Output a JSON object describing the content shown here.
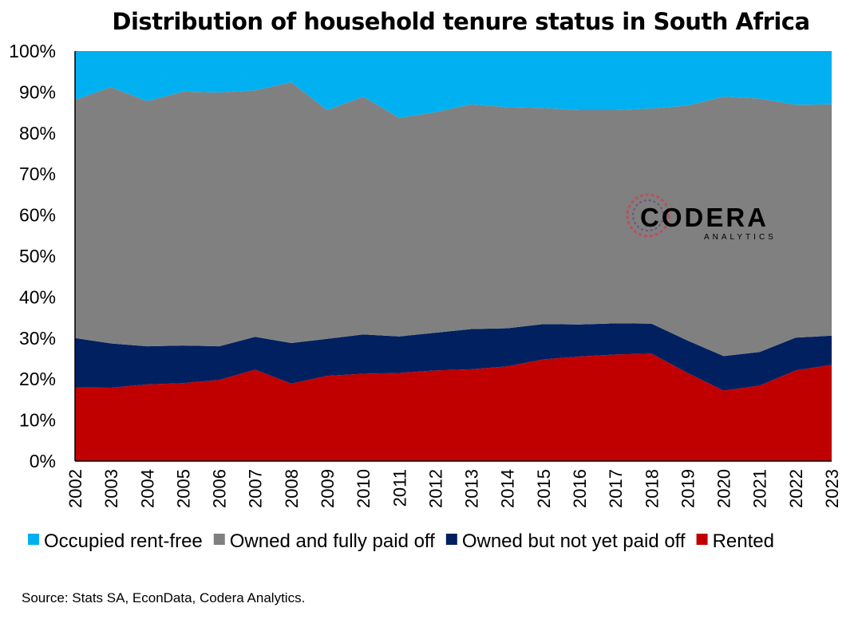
{
  "chart_data": {
    "type": "area",
    "stacked": true,
    "title": "Distribution of household tenure status in South Africa",
    "x": [
      "2002",
      "2003",
      "2004",
      "2005",
      "2006",
      "2007",
      "2008",
      "2009",
      "2010",
      "2011",
      "2012",
      "2013",
      "2014",
      "2015",
      "2016",
      "2017",
      "2018",
      "2019",
      "2020",
      "2021",
      "2022",
      "2023"
    ],
    "ylim": [
      0,
      100
    ],
    "yticks": [
      "0%",
      "10%",
      "20%",
      "30%",
      "40%",
      "50%",
      "60%",
      "70%",
      "80%",
      "90%",
      "100%"
    ],
    "series": [
      {
        "name": "Rented",
        "color": "#c00000",
        "values": [
          18.0,
          17.9,
          18.7,
          19.0,
          19.8,
          22.3,
          18.9,
          20.8,
          21.3,
          21.5,
          22.1,
          22.4,
          23.1,
          24.8,
          25.5,
          26.0,
          26.2,
          21.5,
          17.2,
          18.4,
          22.1,
          23.5
        ]
      },
      {
        "name": "Owned but not yet paid off",
        "color": "#002060",
        "values": [
          12.0,
          10.8,
          9.3,
          9.2,
          8.2,
          8.0,
          9.9,
          9.0,
          9.6,
          8.9,
          9.2,
          9.8,
          9.3,
          8.6,
          7.8,
          7.6,
          7.3,
          7.9,
          8.4,
          8.2,
          8.0,
          7.1
        ]
      },
      {
        "name": "Owned and fully paid off",
        "color": "#808080",
        "values": [
          58.1,
          62.5,
          59.8,
          61.9,
          61.9,
          60.1,
          63.6,
          55.8,
          58.0,
          53.3,
          53.8,
          54.8,
          53.9,
          52.7,
          52.3,
          52.0,
          52.5,
          57.3,
          63.3,
          61.8,
          56.8,
          56.4
        ]
      },
      {
        "name": "Occupied rent-free",
        "color": "#00b0f0",
        "values": [
          11.9,
          8.8,
          12.2,
          9.9,
          10.1,
          9.6,
          7.6,
          14.4,
          11.1,
          16.3,
          14.9,
          13.0,
          13.7,
          13.9,
          14.4,
          14.4,
          14.0,
          13.3,
          11.1,
          11.6,
          13.1,
          13.0
        ]
      }
    ],
    "legend_order": [
      "Occupied rent-free",
      "Owned and fully paid off",
      "Owned but not yet paid off",
      "Rented"
    ],
    "legend_position": "bottom",
    "grid": false
  },
  "logo": {
    "word": "CODERA",
    "sub": "ANALYTICS"
  },
  "source": "Source: Stats SA, EconData, Codera Analytics."
}
